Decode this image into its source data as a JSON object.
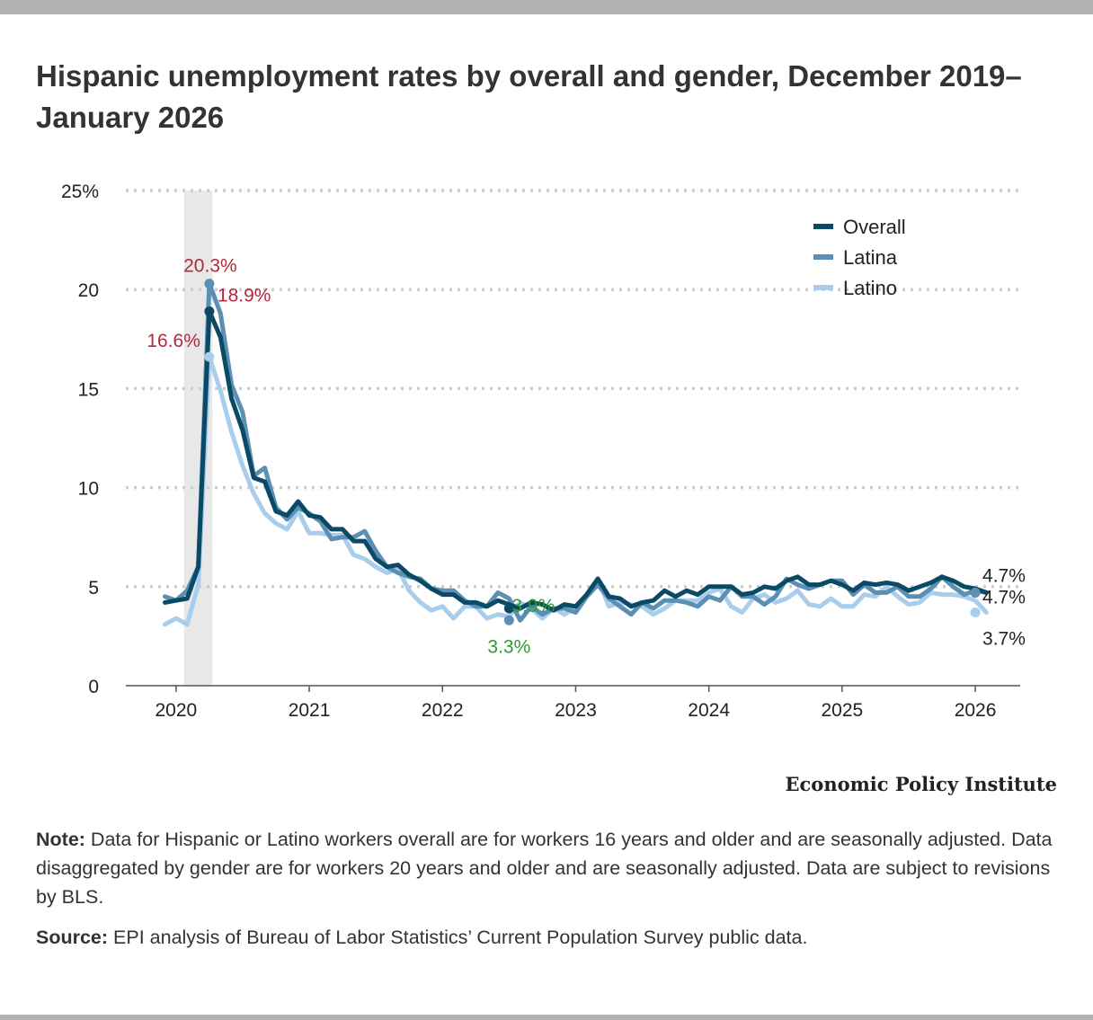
{
  "title": "Hispanic unemployment rates by overall and gender, December 2019–January 2026",
  "brand": "Economic Policy Institute",
  "note": {
    "lead": "Note:",
    "text": " Data for Hispanic or Latino workers overall are for workers 16 years and older and are seasonally adjusted. Data disaggregated by gender are for workers 20 years and older and are seasonally adjusted. Data are subject to revisions by BLS."
  },
  "source": {
    "lead": "Source:",
    "text": " EPI analysis of Bureau of Labor Statistics’ Current Population Survey public data."
  },
  "colors": {
    "overall": "#0b4a66",
    "latina": "#5b8fb3",
    "latino": "#a9cdec",
    "annotation_red": "#b3283a",
    "annotation_green": "#2e9a2e",
    "recession": "#e8e8e8",
    "grid": "#cccccc"
  },
  "chart_data": {
    "type": "line",
    "title": "Hispanic unemployment rates by overall and gender, December 2019–January 2026",
    "x_start": "2019-12",
    "frequency": "monthly",
    "ylim": [
      0,
      25
    ],
    "y_ticks": [
      "0",
      "5",
      "10",
      "15",
      "20",
      "25%"
    ],
    "y_tick_values": [
      0,
      5,
      10,
      15,
      20,
      25
    ],
    "x_ticks": [
      "2020",
      "2021",
      "2022",
      "2023",
      "2024",
      "2025",
      "2026"
    ],
    "x_tick_dates": [
      "2020-01",
      "2021-01",
      "2022-01",
      "2023-01",
      "2024-01",
      "2025-01",
      "2026-01"
    ],
    "grid": "horizontal dotted",
    "legend_position": "top-right",
    "recession_shading": [
      "2020-02",
      "2020-04"
    ],
    "series": [
      {
        "name": "Overall",
        "color": "#0b4a66",
        "values": [
          4.2,
          4.3,
          4.4,
          6.0,
          18.9,
          17.6,
          14.5,
          12.9,
          10.5,
          10.3,
          8.8,
          8.6,
          9.3,
          8.6,
          8.5,
          7.9,
          7.9,
          7.3,
          7.3,
          6.4,
          6.0,
          6.1,
          5.6,
          5.3,
          4.9,
          4.6,
          4.6,
          4.2,
          4.2,
          4.0,
          4.3,
          4.1,
          3.9,
          4.2,
          4.1,
          3.8,
          4.1,
          4.0,
          4.6,
          5.4,
          4.5,
          4.4,
          4.0,
          4.2,
          4.3,
          4.8,
          4.5,
          4.8,
          4.6,
          5.0,
          5.0,
          5.0,
          4.6,
          4.7,
          5.0,
          4.9,
          5.3,
          5.5,
          5.1,
          5.1,
          5.3,
          5.1,
          4.8,
          5.2,
          5.1,
          5.2,
          5.1,
          4.8,
          5.0,
          5.2,
          5.5,
          5.3,
          5.0,
          4.9,
          4.7
        ]
      },
      {
        "name": "Latina",
        "color": "#5b8fb3",
        "values": [
          4.5,
          4.3,
          4.8,
          6.0,
          20.3,
          18.8,
          15.2,
          13.8,
          10.6,
          11.0,
          9.0,
          8.4,
          9.0,
          8.7,
          8.3,
          7.4,
          7.5,
          7.5,
          7.8,
          6.8,
          6.0,
          5.7,
          5.5,
          5.4,
          4.9,
          4.8,
          4.8,
          4.3,
          4.0,
          4.0,
          4.7,
          4.4,
          3.3,
          4.0,
          3.6,
          3.9,
          3.9,
          3.7,
          4.5,
          5.1,
          4.4,
          4.0,
          3.6,
          4.2,
          3.9,
          4.3,
          4.3,
          4.2,
          4.0,
          4.5,
          4.3,
          5.0,
          4.5,
          4.5,
          4.1,
          4.5,
          5.4,
          5.1,
          4.9,
          5.1,
          5.3,
          5.3,
          4.6,
          5.1,
          4.7,
          4.7,
          5.0,
          4.5,
          4.5,
          4.9,
          5.5,
          5.0,
          4.6,
          4.8,
          4.7
        ]
      },
      {
        "name": "Latino",
        "color": "#a9cdec",
        "values": [
          3.1,
          3.4,
          3.1,
          5.1,
          16.6,
          14.9,
          12.8,
          11.1,
          9.7,
          8.7,
          8.2,
          7.9,
          8.8,
          7.7,
          7.7,
          7.6,
          7.6,
          6.6,
          6.4,
          6.0,
          5.7,
          5.9,
          4.8,
          4.2,
          3.8,
          4.0,
          3.4,
          4.0,
          4.0,
          3.4,
          3.6,
          3.5,
          4.2,
          3.9,
          3.4,
          3.9,
          3.6,
          4.0,
          4.6,
          5.4,
          4.0,
          4.2,
          4.1,
          4.0,
          3.6,
          3.9,
          4.3,
          4.3,
          4.3,
          4.7,
          4.9,
          4.0,
          3.7,
          4.4,
          4.6,
          4.2,
          4.4,
          4.8,
          4.1,
          4.0,
          4.4,
          4.0,
          4.0,
          4.6,
          4.5,
          5.0,
          4.5,
          4.1,
          4.2,
          4.7,
          4.6,
          4.6,
          4.5,
          4.3,
          3.7
        ]
      }
    ],
    "annotations": [
      {
        "text": "20.3%",
        "series": "Latina",
        "date": "2020-04",
        "value": 20.3,
        "color": "red"
      },
      {
        "text": "18.9%",
        "series": "Overall",
        "date": "2020-04",
        "value": 18.9,
        "color": "red"
      },
      {
        "text": "16.6%",
        "series": "Latino",
        "date": "2020-04",
        "value": 16.6,
        "color": "red"
      },
      {
        "text": "3.9%",
        "series": "Overall",
        "date": "2022-07",
        "value": 3.9,
        "color": "green"
      },
      {
        "text": "3.3%",
        "series": "Latina",
        "date": "2022-07",
        "value": 3.3,
        "color": "green"
      },
      {
        "text": "4.7%",
        "series": "Overall",
        "date": "2026-01",
        "value": 4.7,
        "color": "dark"
      },
      {
        "text": "4.7%",
        "series": "Latina",
        "date": "2026-01",
        "value": 4.7,
        "color": "dark"
      },
      {
        "text": "3.7%",
        "series": "Latino",
        "date": "2026-01",
        "value": 3.7,
        "color": "dark"
      }
    ]
  }
}
